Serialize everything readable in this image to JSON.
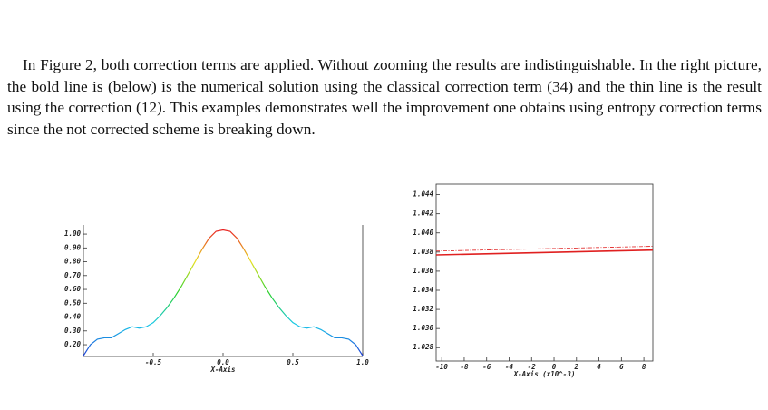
{
  "paragraph": "In Figure 2, both correction terms are applied. Without zooming the results are indistinguishable. In the right picture, the bold line is (below) is the numerical solution using the classical correction term (34) and the thin line is the result using the correction (12). This examples demonstrates well the improvement one obtains using entropy correction terms since the not corrected scheme is breaking down.",
  "chart_data": [
    {
      "type": "line",
      "xlabel": "X-Axis",
      "xlim": [
        -1,
        1
      ],
      "ylim": [
        0.115,
        1.066
      ],
      "xticks": [
        -0.5,
        {
          "value": 0,
          "label": "0.0"
        },
        0.5,
        {
          "value": 1,
          "label": "1.0"
        }
      ],
      "yticks": [
        {
          "value": 0.2,
          "label": "0.20"
        },
        {
          "value": 0.3,
          "label": "0.30"
        },
        {
          "value": 0.4,
          "label": "0.40"
        },
        {
          "value": 0.5,
          "label": "0.50"
        },
        {
          "value": 0.6,
          "label": "0.60"
        },
        {
          "value": 0.7,
          "label": "0.70"
        },
        {
          "value": 0.8,
          "label": "0.80"
        },
        {
          "value": 0.9,
          "label": "0.90"
        },
        {
          "value": 1,
          "label": "1.00"
        }
      ],
      "colormap": [
        "#1f3fd8",
        "#16c8e8",
        "#29d02a",
        "#e8e020",
        "#e82020"
      ],
      "series": [
        {
          "line_width": 1.2,
          "x": [
            -1,
            -0.95,
            -0.9,
            -0.85,
            -0.8,
            -0.75,
            -0.7,
            -0.65,
            -0.6,
            -0.55,
            -0.5,
            -0.45,
            -0.4,
            -0.35,
            -0.3,
            -0.25,
            -0.2,
            -0.15,
            -0.1,
            -0.05,
            0,
            0.05,
            0.1,
            0.15,
            0.2,
            0.25,
            0.3,
            0.35,
            0.4,
            0.45,
            0.5,
            0.55,
            0.6,
            0.65,
            0.7,
            0.75,
            0.8,
            0.85,
            0.9,
            0.95,
            1
          ],
          "values": [
            0.12,
            0.2,
            0.24,
            0.25,
            0.25,
            0.28,
            0.31,
            0.33,
            0.32,
            0.33,
            0.36,
            0.41,
            0.47,
            0.54,
            0.62,
            0.71,
            0.8,
            0.89,
            0.97,
            1.02,
            1.03,
            1.02,
            0.97,
            0.89,
            0.8,
            0.71,
            0.62,
            0.54,
            0.47,
            0.41,
            0.36,
            0.33,
            0.32,
            0.33,
            0.31,
            0.28,
            0.25,
            0.25,
            0.24,
            0.2,
            0.12
          ]
        }
      ]
    },
    {
      "type": "line",
      "xlabel": "X-Axis (x10^-3)",
      "frame": true,
      "xlim": [
        -10.5,
        8.8
      ],
      "ylim": [
        1.0266,
        1.0451
      ],
      "xticks": [
        -10,
        -8,
        -6,
        -4,
        -2,
        0,
        2,
        4,
        6,
        8
      ],
      "yticks": [
        1.028,
        {
          "value": 1.03,
          "label": "1.030"
        },
        1.032,
        1.034,
        1.036,
        1.038,
        {
          "value": 1.04,
          "label": "1.040"
        },
        1.042,
        1.044
      ],
      "series": [
        {
          "color": "#e02020",
          "line_width": 1.6,
          "x": [
            -10.5,
            8.8
          ],
          "values": [
            1.0377,
            1.0382
          ]
        },
        {
          "color": "#e02020",
          "line_width": 0.8,
          "dash": true,
          "x": [
            -10.5,
            8.8
          ],
          "values": [
            1.0381,
            1.0386
          ]
        }
      ]
    }
  ]
}
